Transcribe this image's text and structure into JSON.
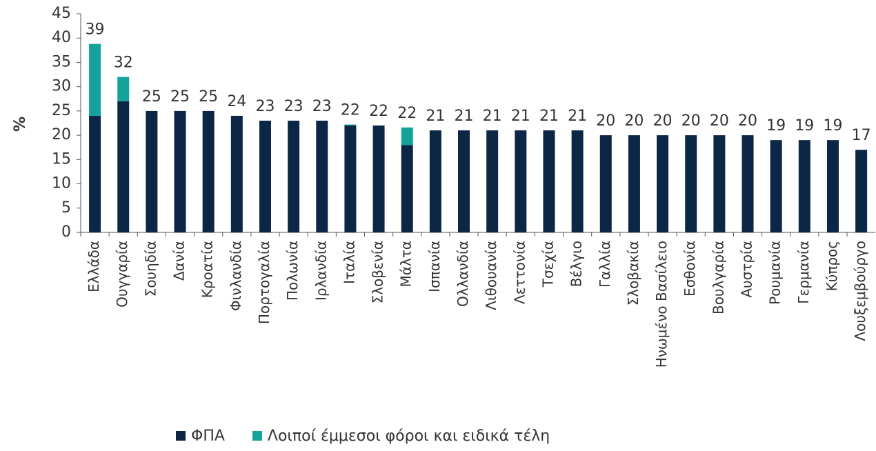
{
  "chart_data": {
    "type": "stacked_bar",
    "ylabel": "%",
    "categories": [
      "Ελλάδα",
      "Ουγγαρία",
      "Σουηδία",
      "Δανία",
      "Κροατία",
      "Φινλανδία",
      "Πορτογαλία",
      "Πολωνία",
      "Ιρλανδία",
      "Ιταλία",
      "Σλοβενία",
      "Μάλτα",
      "Ισπανία",
      "Ολλανδία",
      "Λιθουανία",
      "Λεττονία",
      "Τσεχία",
      "Βέλγιο",
      "Γαλλία",
      "Σλοβακία",
      "Ηνωμένο Βασίλειο",
      "Εσθονία",
      "Βουλγαρία",
      "Αυστρία",
      "Ρουμανία",
      "Γερμανία",
      "Κύπρος",
      "Λουξεμβούργο"
    ],
    "series": [
      {
        "name": "ΦΠΑ",
        "color": "#0b2745",
        "values": [
          24,
          27,
          25,
          25,
          25,
          24,
          23,
          23,
          23,
          22,
          22,
          18,
          21,
          21,
          21,
          21,
          21,
          21,
          20,
          20,
          20,
          20,
          20,
          20,
          19,
          19,
          19,
          17
        ]
      },
      {
        "name": "Λοιποί έμμεσοι φόροι και ειδικά τέλη",
        "color": "#13a39a",
        "values": [
          14.8,
          5,
          0,
          0,
          0,
          0,
          0,
          0,
          0,
          0.2,
          0,
          3.6,
          0,
          0,
          0,
          0,
          0,
          0,
          0,
          0,
          0,
          0,
          0,
          0,
          0,
          0,
          0,
          0
        ]
      }
    ],
    "total_labels": [
      "39",
      "32",
      "25",
      "25",
      "25",
      "24",
      "23",
      "23",
      "23",
      "22",
      "22",
      "22",
      "21",
      "21",
      "21",
      "21",
      "21",
      "21",
      "20",
      "20",
      "20",
      "20",
      "20",
      "20",
      "19",
      "19",
      "19",
      "17"
    ],
    "ylim": [
      0,
      45
    ],
    "yticks": [
      0,
      5,
      10,
      15,
      20,
      25,
      30,
      35,
      40,
      45
    ],
    "grid": false,
    "legend": "bottom"
  }
}
